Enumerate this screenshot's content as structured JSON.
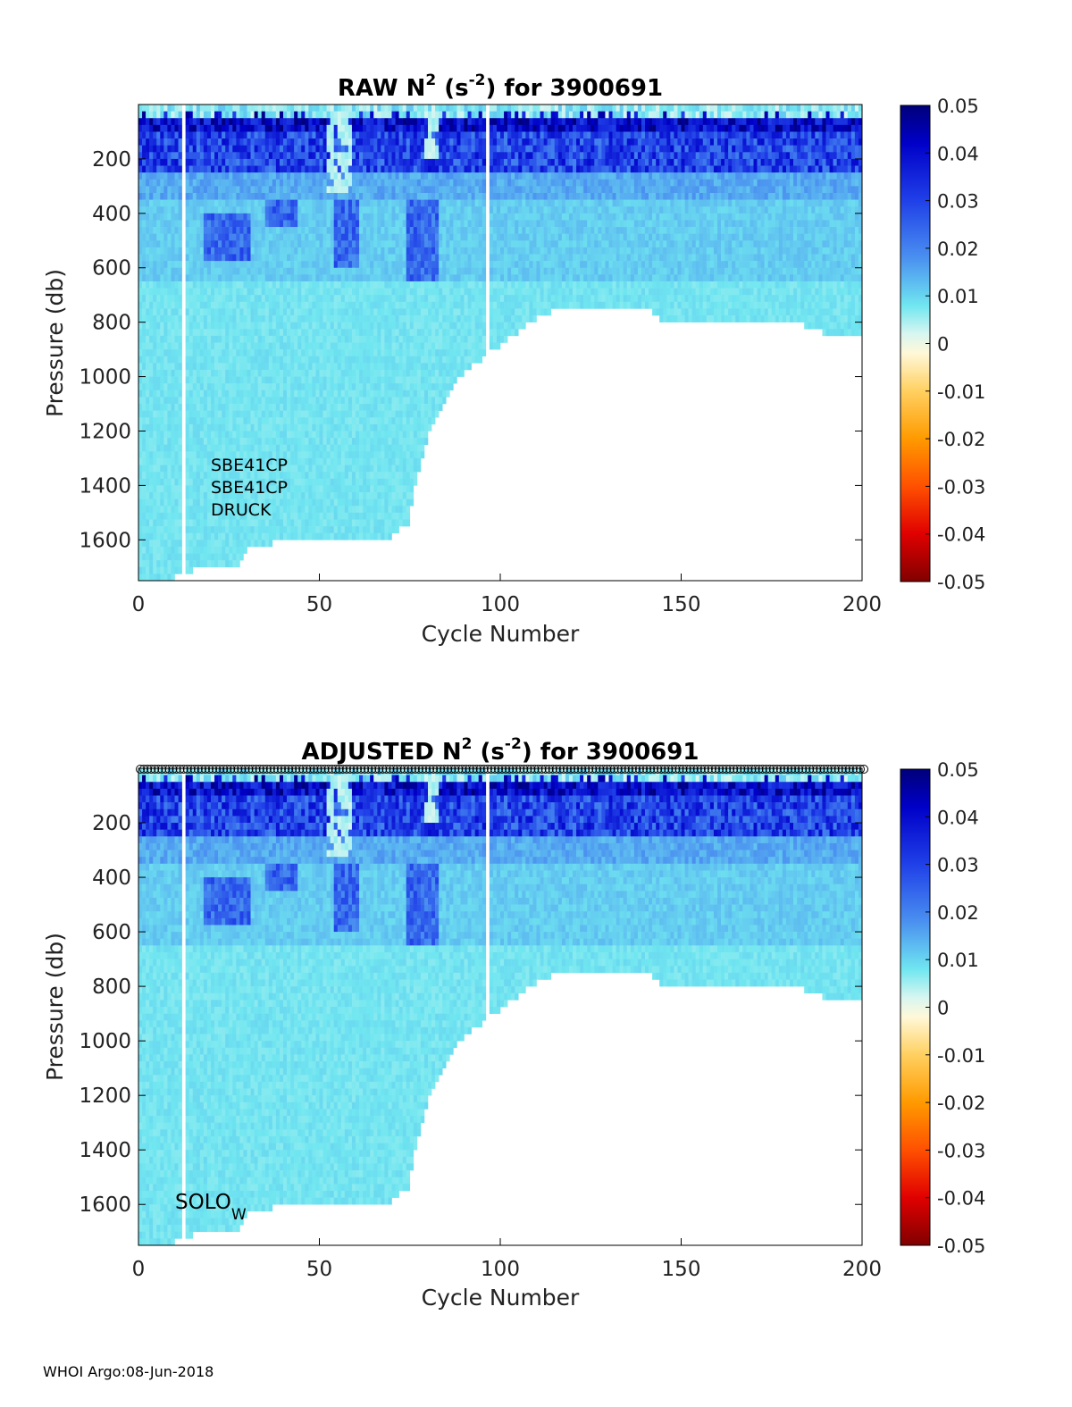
{
  "footer": "WHOI Argo:08-Jun-2018",
  "colorbar": {
    "ticks": [
      "0.05",
      "0.04",
      "0.03",
      "0.02",
      "0.01",
      "0",
      "-0.01",
      "-0.02",
      "-0.03",
      "-0.04",
      "-0.05"
    ],
    "range": [
      -0.05,
      0.05
    ],
    "colormap": "blue-cyan-white-yellow-red (diverging)"
  },
  "chart_data": [
    {
      "type": "heatmap",
      "title_main": "RAW N",
      "title_sup": "2",
      "title_unit_open": " (s",
      "title_unit_sup": "-2",
      "title_unit_close": ")",
      "title_suffix": " for 3900691",
      "xlabel": "Cycle Number",
      "ylabel": "Pressure (db)",
      "xlim": [
        0,
        200
      ],
      "ylim": [
        0,
        1750
      ],
      "xticks": [
        "0",
        "50",
        "100",
        "150",
        "200"
      ],
      "yticks": [
        "200",
        "400",
        "600",
        "800",
        "1000",
        "1200",
        "1400",
        "1600"
      ],
      "clim": [
        -0.05,
        0.05
      ],
      "annotations": [
        "SBE41CP",
        "SBE41CP",
        "DRUCK"
      ],
      "max_pressure_by_cycle": {
        "cycles": [
          0,
          10,
          20,
          28,
          30,
          45,
          60,
          70,
          75,
          78,
          80,
          85,
          90,
          95,
          100,
          110,
          115,
          120,
          130,
          140,
          145,
          160,
          180,
          190,
          200
        ],
        "pressure": [
          1750,
          1750,
          1700,
          1700,
          1650,
          1600,
          1600,
          1600,
          1550,
          1350,
          1250,
          1100,
          1000,
          950,
          900,
          800,
          770,
          750,
          750,
          750,
          800,
          800,
          800,
          850,
          850
        ]
      },
      "gaps_at_cycles": [
        13,
        97
      ],
      "layers": [
        {
          "top": 0,
          "bottom": 150,
          "description_value": 0.045
        },
        {
          "top": 150,
          "bottom": 250,
          "description_value": 0.025
        },
        {
          "top": 250,
          "bottom": 650,
          "description_value": 0.015
        },
        {
          "top": 650,
          "bottom": 1750,
          "description_value": 0.008
        }
      ]
    },
    {
      "type": "heatmap",
      "title_main": "ADJUSTED N",
      "title_sup": "2",
      "title_unit_open": " (s",
      "title_unit_sup": "-2",
      "title_unit_close": ")",
      "title_suffix": " for 3900691",
      "xlabel": "Cycle Number",
      "ylabel": "Pressure (db)",
      "xlim": [
        0,
        200
      ],
      "ylim": [
        0,
        1750
      ],
      "xticks": [
        "0",
        "50",
        "100",
        "150",
        "200"
      ],
      "yticks": [
        "200",
        "400",
        "600",
        "800",
        "1000",
        "1200",
        "1400",
        "1600"
      ],
      "clim": [
        -0.05,
        0.05
      ],
      "annotation_main": "SOLO",
      "annotation_sub": "W",
      "surface_markers": "open circles at p=0 for every cycle 1–200",
      "max_pressure_by_cycle": {
        "cycles": [
          0,
          10,
          20,
          28,
          30,
          45,
          60,
          70,
          75,
          78,
          80,
          85,
          90,
          95,
          100,
          110,
          115,
          120,
          130,
          140,
          145,
          160,
          180,
          190,
          200
        ],
        "pressure": [
          1750,
          1750,
          1700,
          1700,
          1650,
          1600,
          1600,
          1600,
          1550,
          1350,
          1250,
          1100,
          1000,
          950,
          900,
          800,
          770,
          750,
          750,
          750,
          800,
          800,
          800,
          850,
          850
        ]
      },
      "gaps_at_cycles": [
        13,
        97
      ]
    }
  ]
}
